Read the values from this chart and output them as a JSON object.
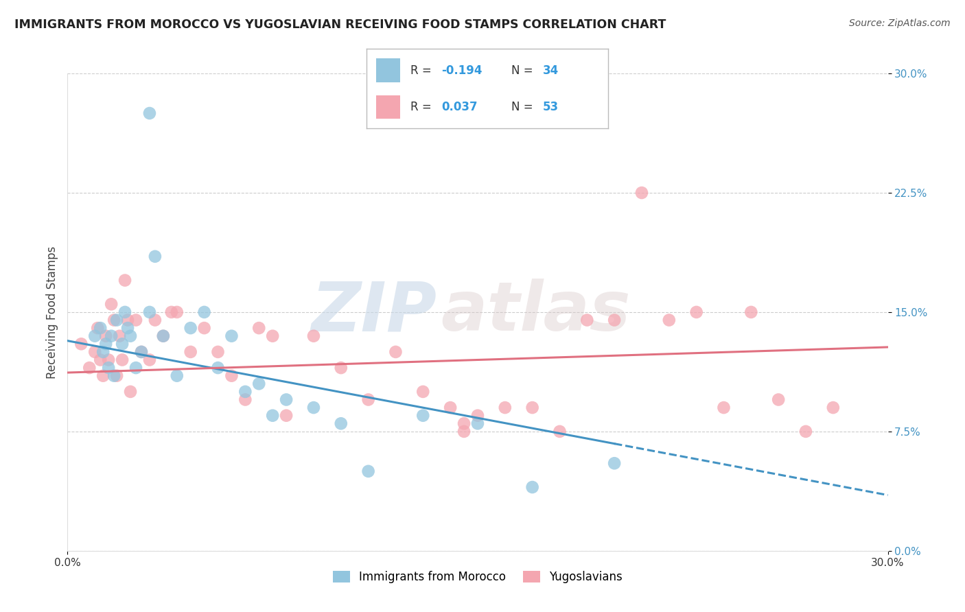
{
  "title": "IMMIGRANTS FROM MOROCCO VS YUGOSLAVIAN RECEIVING FOOD STAMPS CORRELATION CHART",
  "source": "Source: ZipAtlas.com",
  "ylabel": "Receiving Food Stamps",
  "xlim": [
    0.0,
    30.0
  ],
  "ylim": [
    0.0,
    30.0
  ],
  "yticks": [
    0.0,
    7.5,
    15.0,
    22.5,
    30.0
  ],
  "xticks": [
    0.0,
    30.0
  ],
  "legend1_label": "Immigrants from Morocco",
  "legend2_label": "Yugoslavians",
  "morocco_R": -0.194,
  "morocco_N": 34,
  "yugoslavia_R": 0.037,
  "yugoslavia_N": 53,
  "morocco_color": "#92c5de",
  "yugoslavia_color": "#f4a6b0",
  "morocco_line_color": "#4393c3",
  "yugoslavia_line_color": "#e07080",
  "watermark_zip": "ZIP",
  "watermark_atlas": "atlas",
  "morocco_x": [
    1.0,
    1.2,
    1.3,
    1.4,
    1.5,
    1.6,
    1.7,
    1.8,
    2.0,
    2.1,
    2.2,
    2.3,
    2.5,
    2.7,
    3.0,
    3.2,
    3.5,
    4.0,
    4.5,
    5.0,
    5.5,
    6.0,
    6.5,
    7.0,
    7.5,
    8.0,
    9.0,
    10.0,
    11.0,
    13.0,
    15.0,
    17.0,
    20.0,
    3.0
  ],
  "morocco_y": [
    13.5,
    14.0,
    12.5,
    13.0,
    11.5,
    13.5,
    11.0,
    14.5,
    13.0,
    15.0,
    14.0,
    13.5,
    11.5,
    12.5,
    15.0,
    18.5,
    13.5,
    11.0,
    14.0,
    15.0,
    11.5,
    13.5,
    10.0,
    10.5,
    8.5,
    9.5,
    9.0,
    8.0,
    5.0,
    8.5,
    8.0,
    4.0,
    5.5,
    27.5
  ],
  "yugoslavia_x": [
    0.5,
    0.8,
    1.0,
    1.1,
    1.2,
    1.3,
    1.4,
    1.5,
    1.6,
    1.7,
    1.8,
    1.9,
    2.0,
    2.1,
    2.2,
    2.3,
    2.5,
    2.7,
    3.0,
    3.2,
    3.5,
    3.8,
    4.0,
    4.5,
    5.0,
    5.5,
    6.0,
    6.5,
    7.0,
    7.5,
    8.0,
    9.0,
    10.0,
    11.0,
    12.0,
    13.0,
    14.0,
    15.0,
    16.0,
    17.0,
    18.0,
    19.0,
    20.0,
    21.0,
    22.0,
    23.0,
    24.0,
    25.0,
    26.0,
    27.0,
    28.0,
    14.5,
    14.5
  ],
  "yugoslavia_y": [
    13.0,
    11.5,
    12.5,
    14.0,
    12.0,
    11.0,
    13.5,
    12.0,
    15.5,
    14.5,
    11.0,
    13.5,
    12.0,
    17.0,
    14.5,
    10.0,
    14.5,
    12.5,
    12.0,
    14.5,
    13.5,
    15.0,
    15.0,
    12.5,
    14.0,
    12.5,
    11.0,
    9.5,
    14.0,
    13.5,
    8.5,
    13.5,
    11.5,
    9.5,
    12.5,
    10.0,
    9.0,
    8.5,
    9.0,
    9.0,
    7.5,
    14.5,
    14.5,
    22.5,
    14.5,
    15.0,
    9.0,
    15.0,
    9.5,
    7.5,
    9.0,
    7.5,
    8.0
  ],
  "blue_line_x0": 0.0,
  "blue_line_y0": 13.2,
  "blue_line_x1": 30.0,
  "blue_line_y1": 3.5,
  "blue_solid_end": 20.0,
  "pink_line_x0": 0.0,
  "pink_line_y0": 11.2,
  "pink_line_x1": 30.0,
  "pink_line_y1": 12.8
}
